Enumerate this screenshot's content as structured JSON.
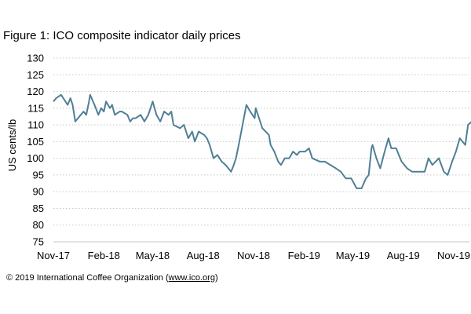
{
  "chart_data": {
    "type": "line",
    "title": "Figure 1: ICO composite indicator daily prices",
    "xlabel": "",
    "ylabel": "US cents/lb",
    "ylim": [
      75,
      130
    ],
    "yticks": [
      75,
      80,
      85,
      90,
      95,
      100,
      105,
      110,
      115,
      120,
      125,
      130
    ],
    "xticks": [
      {
        "date": "2017-11-01",
        "label": "Nov-17"
      },
      {
        "date": "2018-02-01",
        "label": "Feb-18"
      },
      {
        "date": "2018-05-01",
        "label": "May-18"
      },
      {
        "date": "2018-08-01",
        "label": "Aug-18"
      },
      {
        "date": "2018-11-01",
        "label": "Nov-18"
      },
      {
        "date": "2019-02-01",
        "label": "Feb-19"
      },
      {
        "date": "2019-05-01",
        "label": "May-19"
      },
      {
        "date": "2019-08-01",
        "label": "Aug-19"
      },
      {
        "date": "2019-11-01",
        "label": "Nov-19"
      }
    ],
    "grid": "horizontal dotted",
    "line_color": "#4f7f94",
    "series": [
      {
        "x": [
          "2017-11-01",
          "2017-11-06",
          "2017-11-15",
          "2017-11-27",
          "2017-12-02",
          "2017-12-06",
          "2017-12-11",
          "2017-12-21",
          "2017-12-26",
          "2017-12-31",
          "2018-01-05",
          "2018-01-07",
          "2018-01-15",
          "2018-01-22",
          "2018-01-27",
          "2018-02-01",
          "2018-02-05",
          "2018-02-12",
          "2018-02-16",
          "2018-02-21",
          "2018-03-02",
          "2018-03-06",
          "2018-03-16",
          "2018-03-21",
          "2018-03-26",
          "2018-03-31",
          "2018-04-09",
          "2018-04-16",
          "2018-04-23",
          "2018-05-01",
          "2018-05-08",
          "2018-05-15",
          "2018-05-22",
          "2018-05-30",
          "2018-06-04",
          "2018-06-08",
          "2018-06-20",
          "2018-06-27",
          "2018-07-05",
          "2018-07-12",
          "2018-07-17",
          "2018-07-24",
          "2018-08-03",
          "2018-08-08",
          "2018-08-13",
          "2018-08-20",
          "2018-08-27",
          "2018-09-04",
          "2018-09-11",
          "2018-09-21",
          "2018-09-26",
          "2018-09-30",
          "2018-10-05",
          "2018-10-12",
          "2018-10-19",
          "2018-10-26",
          "2018-11-03",
          "2018-11-05",
          "2018-11-13",
          "2018-11-17",
          "2018-11-29",
          "2018-12-02",
          "2018-12-09",
          "2018-12-16",
          "2018-12-21",
          "2018-12-28",
          "2019-01-05",
          "2019-01-12",
          "2019-01-19",
          "2019-01-24",
          "2019-02-03",
          "2019-02-10",
          "2019-02-16",
          "2019-03-02",
          "2019-03-11",
          "2019-03-21",
          "2019-03-31",
          "2019-04-09",
          "2019-04-18",
          "2019-04-28",
          "2019-05-08",
          "2019-05-17",
          "2019-05-25",
          "2019-05-30",
          "2019-06-04",
          "2019-06-06",
          "2019-06-13",
          "2019-06-20",
          "2019-06-28",
          "2019-07-05",
          "2019-07-10",
          "2019-07-19",
          "2019-07-29",
          "2019-08-08",
          "2019-08-17",
          "2019-09-02",
          "2019-09-09",
          "2019-09-16",
          "2019-09-23",
          "2019-10-05",
          "2019-10-14",
          "2019-10-21",
          "2019-10-29",
          "2019-11-05",
          "2019-11-12",
          "2019-11-22",
          "2019-11-27",
          "2019-12-04"
        ],
        "y": [
          117,
          118,
          119,
          116,
          118,
          116,
          111,
          113,
          114,
          113,
          117,
          119,
          116,
          113,
          115,
          114,
          117,
          115,
          116,
          113,
          114,
          114,
          113,
          111,
          112,
          112,
          113,
          111,
          113,
          117,
          113,
          111,
          114,
          113,
          114,
          110,
          109,
          110,
          106,
          108,
          105,
          108,
          107,
          106,
          104,
          100,
          101,
          99,
          98,
          96,
          98,
          100,
          104,
          110,
          116,
          114,
          112,
          115,
          111,
          109,
          107,
          104,
          102,
          99,
          98,
          100,
          100,
          102,
          101,
          102,
          102,
          103,
          100,
          99,
          99,
          98,
          97,
          96,
          94,
          94,
          91,
          91,
          94,
          95,
          103,
          104,
          100,
          97,
          102,
          106,
          103,
          103,
          99,
          97,
          96,
          96,
          96,
          100,
          98,
          100,
          96,
          95,
          99,
          102,
          106,
          104,
          110,
          111
        ]
      }
    ]
  },
  "footer": {
    "copyright_prefix": "© 2019 International Coffee Organization (",
    "link": "www.ico.org",
    "copyright_suffix": ")"
  }
}
